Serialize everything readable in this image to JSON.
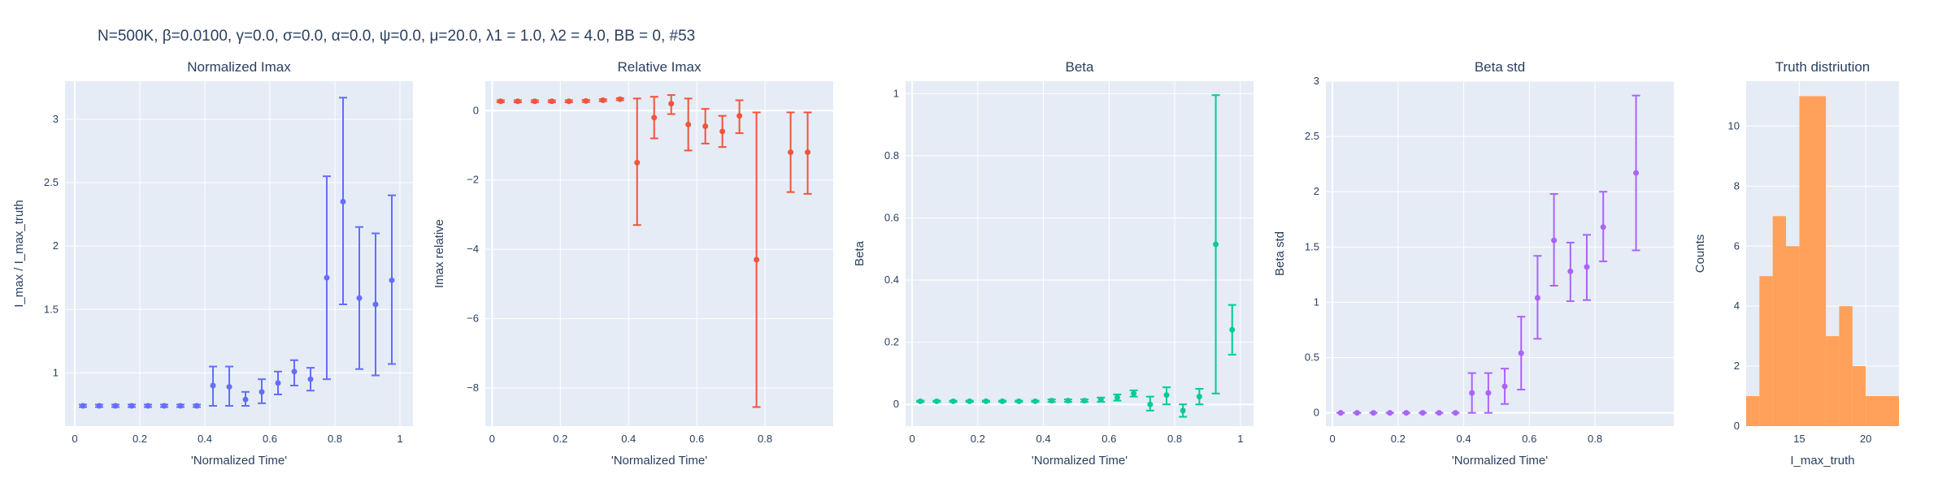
{
  "figure": {
    "suptitle": "N=500K, β=0.0100, γ=0.0, σ=0.0,  α=0.0, ψ=0.0, μ=20.0, λ1 = 1.0, λ2 = 4.0, BB = 0, #53",
    "plot_bg": "#e5ecf6",
    "grid_color": "#ffffff"
  },
  "chart_data": [
    {
      "type": "scatter",
      "title": "Normalized Imax",
      "xlabel": "'Normalized Time'",
      "ylabel": "I_max / I_max_truth",
      "color": "#636efa",
      "xlim": [
        -0.03,
        1.04
      ],
      "ylim": [
        0.58,
        3.3
      ],
      "xticks": [
        0,
        0.2,
        0.4,
        0.6,
        0.8,
        1
      ],
      "xticklabels": [
        "0",
        "0.2",
        "0.4",
        "0.6",
        "0.8",
        "1"
      ],
      "yticks": [
        1,
        1.5,
        2,
        2.5,
        3
      ],
      "yticklabels": [
        "1",
        "1.5",
        "2",
        "2.5",
        "3"
      ],
      "points": [
        {
          "x": 0.025,
          "y": 0.74,
          "lo": 0.73,
          "hi": 0.75
        },
        {
          "x": 0.075,
          "y": 0.74,
          "lo": 0.73,
          "hi": 0.75
        },
        {
          "x": 0.125,
          "y": 0.74,
          "lo": 0.73,
          "hi": 0.75
        },
        {
          "x": 0.175,
          "y": 0.74,
          "lo": 0.73,
          "hi": 0.75
        },
        {
          "x": 0.225,
          "y": 0.74,
          "lo": 0.73,
          "hi": 0.75
        },
        {
          "x": 0.275,
          "y": 0.74,
          "lo": 0.73,
          "hi": 0.75
        },
        {
          "x": 0.325,
          "y": 0.74,
          "lo": 0.73,
          "hi": 0.75
        },
        {
          "x": 0.375,
          "y": 0.74,
          "lo": 0.73,
          "hi": 0.75
        },
        {
          "x": 0.425,
          "y": 0.9,
          "lo": 0.74,
          "hi": 1.05
        },
        {
          "x": 0.475,
          "y": 0.89,
          "lo": 0.74,
          "hi": 1.05
        },
        {
          "x": 0.525,
          "y": 0.79,
          "lo": 0.74,
          "hi": 0.85
        },
        {
          "x": 0.575,
          "y": 0.85,
          "lo": 0.76,
          "hi": 0.95
        },
        {
          "x": 0.625,
          "y": 0.92,
          "lo": 0.83,
          "hi": 1.01
        },
        {
          "x": 0.675,
          "y": 1.01,
          "lo": 0.9,
          "hi": 1.1
        },
        {
          "x": 0.725,
          "y": 0.95,
          "lo": 0.86,
          "hi": 1.04
        },
        {
          "x": 0.775,
          "y": 1.75,
          "lo": 0.95,
          "hi": 2.55
        },
        {
          "x": 0.825,
          "y": 2.35,
          "lo": 1.54,
          "hi": 3.17
        },
        {
          "x": 0.875,
          "y": 1.59,
          "lo": 1.03,
          "hi": 2.15
        },
        {
          "x": 0.925,
          "y": 1.54,
          "lo": 0.98,
          "hi": 2.1
        },
        {
          "x": 0.975,
          "y": 1.73,
          "lo": 1.07,
          "hi": 2.4
        }
      ]
    },
    {
      "type": "scatter",
      "title": "Relative Imax",
      "xlabel": "'Normalized Time'",
      "ylabel": "Imax relative",
      "color": "#ef553b",
      "xlim": [
        -0.02,
        1.0
      ],
      "ylim": [
        -9.1,
        0.85
      ],
      "xticks": [
        0,
        0.2,
        0.4,
        0.6,
        0.8
      ],
      "xticklabels": [
        "0",
        "0.2",
        "0.4",
        "0.6",
        "0.8"
      ],
      "yticks": [
        -8,
        -6,
        -4,
        -2,
        0
      ],
      "yticklabels": [
        "−8",
        "−6",
        "−4",
        "−2",
        "0"
      ],
      "points": [
        {
          "x": 0.025,
          "y": 0.27,
          "lo": 0.24,
          "hi": 0.3
        },
        {
          "x": 0.075,
          "y": 0.27,
          "lo": 0.24,
          "hi": 0.3
        },
        {
          "x": 0.125,
          "y": 0.27,
          "lo": 0.24,
          "hi": 0.3
        },
        {
          "x": 0.175,
          "y": 0.27,
          "lo": 0.24,
          "hi": 0.3
        },
        {
          "x": 0.225,
          "y": 0.27,
          "lo": 0.24,
          "hi": 0.3
        },
        {
          "x": 0.275,
          "y": 0.28,
          "lo": 0.25,
          "hi": 0.31
        },
        {
          "x": 0.325,
          "y": 0.3,
          "lo": 0.27,
          "hi": 0.33
        },
        {
          "x": 0.375,
          "y": 0.33,
          "lo": 0.3,
          "hi": 0.36
        },
        {
          "x": 0.425,
          "y": -1.5,
          "lo": -3.3,
          "hi": 0.35
        },
        {
          "x": 0.475,
          "y": -0.2,
          "lo": -0.8,
          "hi": 0.4
        },
        {
          "x": 0.525,
          "y": 0.2,
          "lo": -0.1,
          "hi": 0.45
        },
        {
          "x": 0.575,
          "y": -0.4,
          "lo": -1.15,
          "hi": 0.35
        },
        {
          "x": 0.625,
          "y": -0.45,
          "lo": -0.95,
          "hi": 0.05
        },
        {
          "x": 0.675,
          "y": -0.6,
          "lo": -1.05,
          "hi": -0.15
        },
        {
          "x": 0.725,
          "y": -0.15,
          "lo": -0.65,
          "hi": 0.3
        },
        {
          "x": 0.775,
          "y": -4.3,
          "lo": -8.55,
          "hi": -0.05
        },
        {
          "x": 0.875,
          "y": -1.2,
          "lo": -2.35,
          "hi": -0.05
        },
        {
          "x": 0.925,
          "y": -1.2,
          "lo": -2.4,
          "hi": -0.05
        }
      ]
    },
    {
      "type": "scatter",
      "title": "Beta",
      "xlabel": "'Normalized Time'",
      "ylabel": "Beta",
      "color": "#00cc96",
      "xlim": [
        -0.02,
        1.04
      ],
      "ylim": [
        -0.07,
        1.04
      ],
      "xticks": [
        0,
        0.2,
        0.4,
        0.6,
        0.8,
        1
      ],
      "xticklabels": [
        "0",
        "0.2",
        "0.4",
        "0.6",
        "0.8",
        "1"
      ],
      "yticks": [
        0,
        0.2,
        0.4,
        0.6,
        0.8,
        1
      ],
      "yticklabels": [
        "0",
        "0.2",
        "0.4",
        "0.6",
        "0.8",
        "1"
      ],
      "points": [
        {
          "x": 0.025,
          "y": 0.01,
          "lo": 0.008,
          "hi": 0.012
        },
        {
          "x": 0.075,
          "y": 0.01,
          "lo": 0.008,
          "hi": 0.012
        },
        {
          "x": 0.125,
          "y": 0.01,
          "lo": 0.008,
          "hi": 0.012
        },
        {
          "x": 0.175,
          "y": 0.01,
          "lo": 0.008,
          "hi": 0.012
        },
        {
          "x": 0.225,
          "y": 0.01,
          "lo": 0.008,
          "hi": 0.012
        },
        {
          "x": 0.275,
          "y": 0.01,
          "lo": 0.008,
          "hi": 0.012
        },
        {
          "x": 0.325,
          "y": 0.01,
          "lo": 0.008,
          "hi": 0.012
        },
        {
          "x": 0.375,
          "y": 0.01,
          "lo": 0.008,
          "hi": 0.012
        },
        {
          "x": 0.425,
          "y": 0.012,
          "lo": 0.008,
          "hi": 0.016
        },
        {
          "x": 0.475,
          "y": 0.012,
          "lo": 0.008,
          "hi": 0.016
        },
        {
          "x": 0.525,
          "y": 0.012,
          "lo": 0.008,
          "hi": 0.016
        },
        {
          "x": 0.575,
          "y": 0.015,
          "lo": 0.008,
          "hi": 0.022
        },
        {
          "x": 0.625,
          "y": 0.022,
          "lo": 0.012,
          "hi": 0.032
        },
        {
          "x": 0.675,
          "y": 0.035,
          "lo": 0.025,
          "hi": 0.045
        },
        {
          "x": 0.725,
          "y": 0.0,
          "lo": -0.02,
          "hi": 0.025
        },
        {
          "x": 0.775,
          "y": 0.03,
          "lo": 0.0,
          "hi": 0.055
        },
        {
          "x": 0.825,
          "y": -0.02,
          "lo": -0.04,
          "hi": 0.0
        },
        {
          "x": 0.875,
          "y": 0.025,
          "lo": 0.0,
          "hi": 0.05
        },
        {
          "x": 0.925,
          "y": 0.515,
          "lo": 0.035,
          "hi": 0.995
        },
        {
          "x": 0.975,
          "y": 0.24,
          "lo": 0.16,
          "hi": 0.32
        }
      ]
    },
    {
      "type": "scatter",
      "title": "Beta std",
      "xlabel": "'Normalized Time'",
      "ylabel": "Beta std",
      "color": "#ab63fa",
      "xlim": [
        -0.02,
        1.04
      ],
      "ylim": [
        -0.12,
        3.0
      ],
      "xticks": [
        0,
        0.2,
        0.4,
        0.6,
        0.8
      ],
      "xticklabels": [
        "0",
        "0.2",
        "0.4",
        "0.6",
        "0.8"
      ],
      "yticks": [
        0,
        0.5,
        1,
        1.5,
        2,
        2.5,
        3
      ],
      "yticklabels": [
        "0",
        "0.5",
        "1",
        "1.5",
        "2",
        "2.5",
        "3"
      ],
      "points": [
        {
          "x": 0.025,
          "y": 0.0,
          "lo": 0.0,
          "hi": 0.0
        },
        {
          "x": 0.075,
          "y": 0.0,
          "lo": 0.0,
          "hi": 0.0
        },
        {
          "x": 0.125,
          "y": 0.0,
          "lo": 0.0,
          "hi": 0.0
        },
        {
          "x": 0.175,
          "y": 0.0,
          "lo": 0.0,
          "hi": 0.0
        },
        {
          "x": 0.225,
          "y": 0.0,
          "lo": 0.0,
          "hi": 0.0
        },
        {
          "x": 0.275,
          "y": 0.0,
          "lo": 0.0,
          "hi": 0.0
        },
        {
          "x": 0.325,
          "y": 0.0,
          "lo": 0.0,
          "hi": 0.0
        },
        {
          "x": 0.375,
          "y": 0.0,
          "lo": 0.0,
          "hi": 0.0
        },
        {
          "x": 0.425,
          "y": 0.18,
          "lo": 0.0,
          "hi": 0.36
        },
        {
          "x": 0.475,
          "y": 0.18,
          "lo": 0.0,
          "hi": 0.36
        },
        {
          "x": 0.525,
          "y": 0.24,
          "lo": 0.08,
          "hi": 0.4
        },
        {
          "x": 0.575,
          "y": 0.54,
          "lo": 0.21,
          "hi": 0.87
        },
        {
          "x": 0.625,
          "y": 1.04,
          "lo": 0.67,
          "hi": 1.42
        },
        {
          "x": 0.675,
          "y": 1.56,
          "lo": 1.15,
          "hi": 1.98
        },
        {
          "x": 0.725,
          "y": 1.28,
          "lo": 1.01,
          "hi": 1.54
        },
        {
          "x": 0.775,
          "y": 1.32,
          "lo": 1.02,
          "hi": 1.61
        },
        {
          "x": 0.825,
          "y": 1.68,
          "lo": 1.37,
          "hi": 2.0
        },
        {
          "x": 0.925,
          "y": 2.17,
          "lo": 1.47,
          "hi": 2.87
        }
      ]
    },
    {
      "type": "bar",
      "title": "Truth distriution",
      "xlabel": "I_max_truth",
      "ylabel": "Counts",
      "color": "#ffa15a",
      "xlim": [
        11,
        22.5
      ],
      "ylim": [
        0,
        11.5
      ],
      "xticks": [
        15,
        20
      ],
      "xticklabels": [
        "15",
        "20"
      ],
      "yticks": [
        0,
        2,
        4,
        6,
        8,
        10
      ],
      "yticklabels": [
        "0",
        "2",
        "4",
        "6",
        "8",
        "10"
      ],
      "bins": [
        {
          "x0": 11,
          "x1": 12,
          "count": 1
        },
        {
          "x0": 12,
          "x1": 13,
          "count": 5
        },
        {
          "x0": 13,
          "x1": 14,
          "count": 7
        },
        {
          "x0": 14,
          "x1": 15,
          "count": 6
        },
        {
          "x0": 15,
          "x1": 17,
          "count": 11
        },
        {
          "x0": 17,
          "x1": 18,
          "count": 3
        },
        {
          "x0": 18,
          "x1": 19,
          "count": 4
        },
        {
          "x0": 19,
          "x1": 20,
          "count": 2
        },
        {
          "x0": 20,
          "x1": 22.5,
          "count": 1
        }
      ]
    }
  ]
}
